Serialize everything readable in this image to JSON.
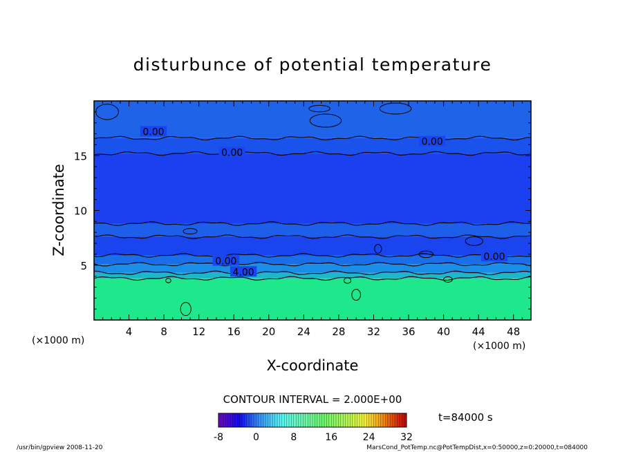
{
  "chart_data": {
    "type": "heatmap",
    "title": "disturbunce of potential temperature",
    "xlabel": "X-coordinate",
    "ylabel": "Z-coordinate",
    "x_unit_left": "(×1000 m)",
    "x_unit_right": "(×1000 m)",
    "xlim": [
      0,
      50
    ],
    "ylim": [
      0,
      20
    ],
    "xticks": [
      "4",
      "8",
      "12",
      "16",
      "20",
      "24",
      "28",
      "32",
      "36",
      "40",
      "44",
      "48"
    ],
    "yticks": [
      "5",
      "10",
      "15"
    ],
    "contour_interval_label": "CONTOUR INTERVAL = 2.000E+00",
    "time_label": "t=84000 s",
    "colorbar": {
      "range": [
        -8,
        32
      ],
      "ticks": [
        "-8",
        "0",
        "8",
        "16",
        "24",
        "32"
      ]
    },
    "contour_labels": [
      {
        "text": "0.00",
        "x": 6.8,
        "z": 17.2
      },
      {
        "text": "0.00",
        "x": 15.8,
        "z": 15.3
      },
      {
        "text": "0.00",
        "x": 38.7,
        "z": 16.3
      },
      {
        "text": "0.00",
        "x": 15.1,
        "z": 5.4
      },
      {
        "text": "4.00",
        "x": 17.1,
        "z": 4.4
      },
      {
        "text": "0.00",
        "x": 45.8,
        "z": 5.8
      }
    ],
    "layers": [
      {
        "z_from": 0.0,
        "z_to": 3.8,
        "value": 14,
        "color": "#1fe88c"
      },
      {
        "z_from": 3.8,
        "z_to": 4.3,
        "value": 8,
        "color": "#1ab8c8"
      },
      {
        "z_from": 4.3,
        "z_to": 5.1,
        "value": 4,
        "color": "#1a8ee6"
      },
      {
        "z_from": 5.1,
        "z_to": 5.9,
        "value": 2,
        "color": "#1a6eea"
      },
      {
        "z_from": 5.9,
        "z_to": 7.6,
        "value": -1,
        "color": "#1a44ee"
      },
      {
        "z_from": 7.6,
        "z_to": 8.8,
        "value": 1,
        "color": "#1e5fea"
      },
      {
        "z_from": 8.8,
        "z_to": 15.2,
        "value": -2,
        "color": "#1a40ef"
      },
      {
        "z_from": 15.2,
        "z_to": 16.6,
        "value": -1,
        "color": "#1a52ec"
      },
      {
        "z_from": 16.6,
        "z_to": 20.0,
        "value": 1,
        "color": "#1e63e8"
      }
    ]
  },
  "footer": {
    "left": "/usr/bin/gpview   2008-11-20",
    "right": "MarsCond_PotTemp.nc@PotTempDist,x=0:50000,z=0:20000,t=084000"
  }
}
